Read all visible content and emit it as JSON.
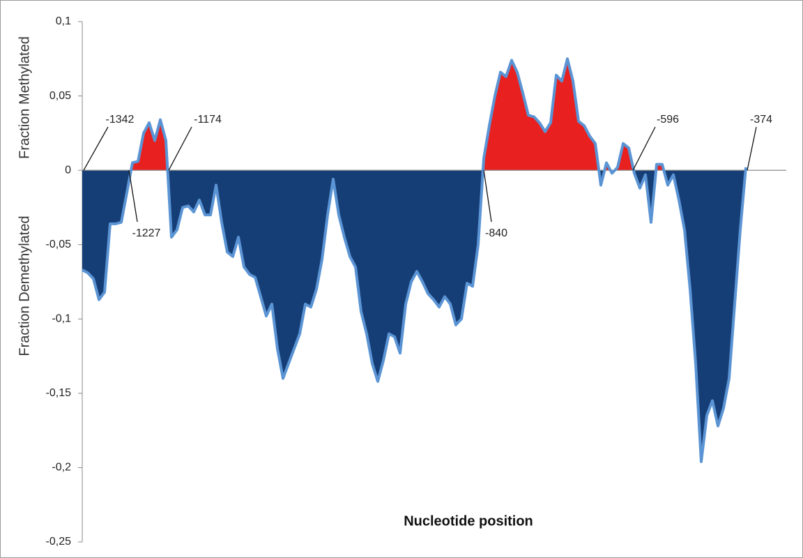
{
  "chart_data": {
    "type": "area",
    "y_title_positive": "Fraction Methylated",
    "y_title_negative": "Fraction Demethylated",
    "x_title": "Nucleotide position",
    "ylim": [
      -0.25,
      0.1
    ],
    "yticks": [
      {
        "value": -0.25,
        "label": "-0,25"
      },
      {
        "value": -0.2,
        "label": "-0,2"
      },
      {
        "value": -0.15,
        "label": "-0,15"
      },
      {
        "value": -0.1,
        "label": "-0,1"
      },
      {
        "value": -0.05,
        "label": "-0,05"
      },
      0,
      {
        "value": 0.05,
        "label": "0,05"
      },
      {
        "value": 0.1,
        "label": "0,1"
      }
    ],
    "positive_color": "#e8201f",
    "negative_color": "#163e76",
    "line_color": "#5b94d4",
    "values": [
      -0.067,
      -0.069,
      -0.073,
      -0.087,
      -0.082,
      -0.036,
      -0.036,
      -0.035,
      -0.015,
      0.005,
      0.006,
      0.025,
      0.032,
      0.02,
      0.034,
      0.02,
      -0.045,
      -0.04,
      -0.025,
      -0.024,
      -0.028,
      -0.02,
      -0.03,
      -0.03,
      -0.01,
      -0.035,
      -0.055,
      -0.058,
      -0.045,
      -0.065,
      -0.07,
      -0.072,
      -0.085,
      -0.098,
      -0.09,
      -0.12,
      -0.14,
      -0.13,
      -0.12,
      -0.11,
      -0.09,
      -0.092,
      -0.08,
      -0.06,
      -0.03,
      -0.006,
      -0.03,
      -0.045,
      -0.058,
      -0.065,
      -0.095,
      -0.11,
      -0.13,
      -0.142,
      -0.128,
      -0.11,
      -0.112,
      -0.123,
      -0.09,
      -0.075,
      -0.068,
      -0.075,
      -0.083,
      -0.087,
      -0.092,
      -0.085,
      -0.09,
      -0.104,
      -0.1,
      -0.076,
      -0.078,
      -0.05,
      0.008,
      0.03,
      0.05,
      0.066,
      0.063,
      0.074,
      0.066,
      0.052,
      0.037,
      0.036,
      0.032,
      0.026,
      0.032,
      0.064,
      0.06,
      0.075,
      0.06,
      0.033,
      0.03,
      0.023,
      0.018,
      -0.01,
      0.005,
      -0.002,
      0.002,
      0.018,
      0.015,
      -0.002,
      -0.012,
      -0.003,
      -0.035,
      0.004,
      0.004,
      -0.01,
      -0.003,
      -0.02,
      -0.04,
      -0.08,
      -0.13,
      -0.196,
      -0.165,
      -0.155,
      -0.172,
      -0.16,
      -0.14,
      -0.09,
      -0.04,
      0.002
    ],
    "annotations": [
      "-1342",
      "-1227",
      "-1174",
      "-840",
      "-596",
      "-374"
    ]
  }
}
